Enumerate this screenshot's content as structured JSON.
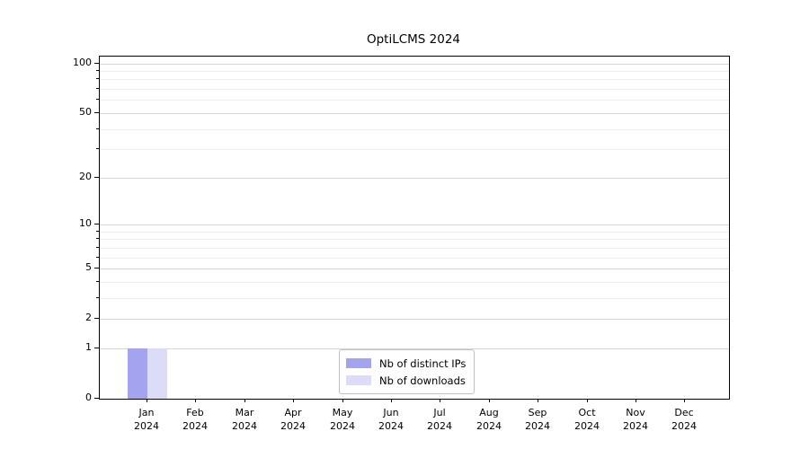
{
  "title": "OptiLCMS 2024",
  "colors": {
    "distinct_ips": "#a3a3f0",
    "downloads": "#dcdcf8",
    "grid_major": "#d6d6d6",
    "grid_minor": "#ededed",
    "axis": "#000000",
    "legend_border": "#c0c0c0"
  },
  "chart_data": {
    "type": "bar",
    "title": "OptiLCMS 2024",
    "categories": [
      "Jan 2024",
      "Feb 2024",
      "Mar 2024",
      "Apr 2024",
      "May 2024",
      "Jun 2024",
      "Jul 2024",
      "Aug 2024",
      "Sep 2024",
      "Oct 2024",
      "Nov 2024",
      "Dec 2024"
    ],
    "x_tick_months": [
      "Jan",
      "Feb",
      "Mar",
      "Apr",
      "May",
      "Jun",
      "Jul",
      "Aug",
      "Sep",
      "Oct",
      "Nov",
      "Dec"
    ],
    "x_tick_year": "2024",
    "series": [
      {
        "name": "Nb of distinct IPs",
        "color": "#a3a3f0",
        "values": [
          1,
          0,
          0,
          0,
          0,
          0,
          0,
          0,
          0,
          0,
          0,
          0
        ]
      },
      {
        "name": "Nb of downloads",
        "color": "#dcdcf8",
        "values": [
          1,
          0,
          0,
          0,
          0,
          0,
          0,
          0,
          0,
          0,
          0,
          0
        ]
      }
    ],
    "yscale": "log1p",
    "ylabel": "",
    "xlabel": "",
    "y_major_ticks": [
      0,
      1,
      2,
      5,
      10,
      20,
      50,
      100
    ],
    "y_minor_ticks": [
      3,
      4,
      6,
      7,
      8,
      9,
      30,
      40,
      60,
      70,
      80,
      90
    ],
    "ylim": [
      0,
      110
    ],
    "grid": "horizontal",
    "legend_position": "lower center"
  }
}
